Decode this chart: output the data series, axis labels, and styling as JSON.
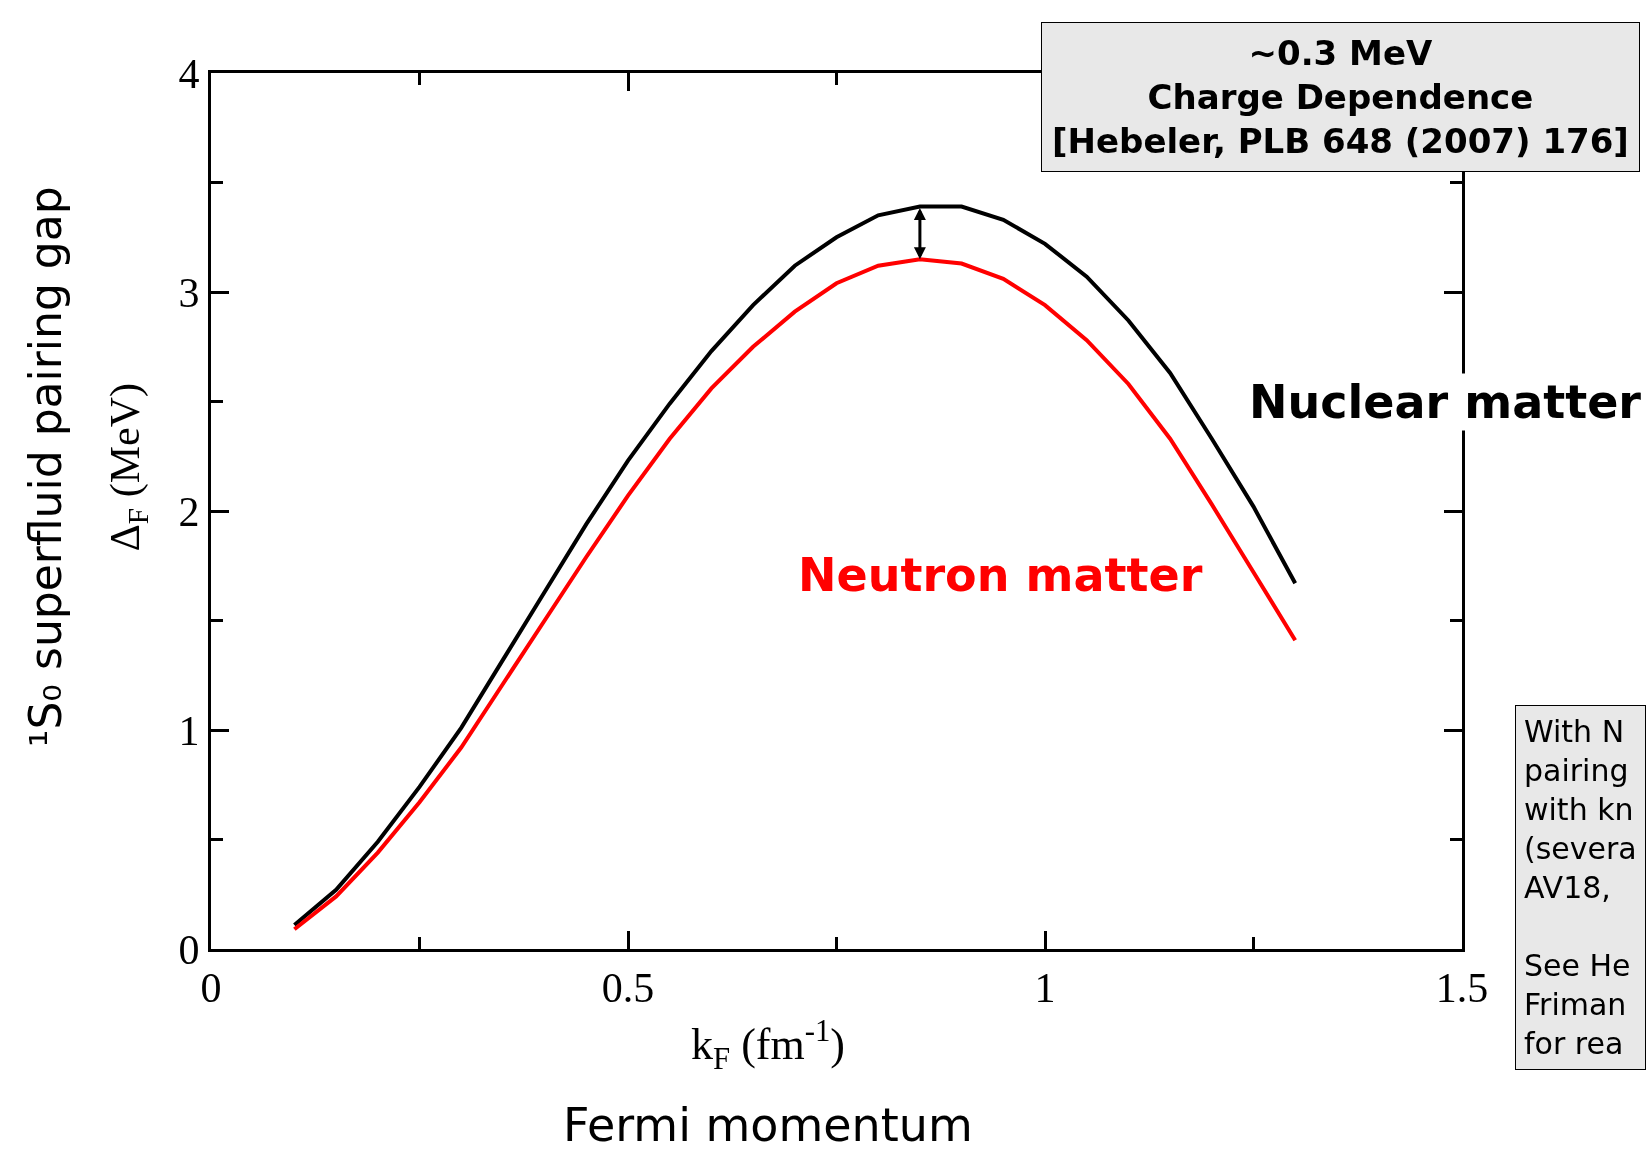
{
  "chart_data": {
    "type": "line",
    "xlabel": "k$_{F}$ (fm$^{-1}$)\nFermi momentum",
    "ylabel": "¹S₀ superfluid pairing gap\nΔ$_{F}$ (MeV)",
    "x": [
      0.1,
      0.15,
      0.2,
      0.25,
      0.3,
      0.35,
      0.4,
      0.45,
      0.5,
      0.55,
      0.6,
      0.65,
      0.7,
      0.75,
      0.8,
      0.85,
      0.9,
      0.95,
      1.0,
      1.05,
      1.1,
      1.15,
      1.2,
      1.25,
      1.3
    ],
    "series": [
      {
        "name": "Nuclear matter",
        "color": "#000000",
        "values": [
          0.11,
          0.27,
          0.49,
          0.74,
          1.01,
          1.32,
          1.63,
          1.94,
          2.23,
          2.49,
          2.73,
          2.94,
          3.12,
          3.25,
          3.35,
          3.39,
          3.39,
          3.33,
          3.22,
          3.07,
          2.87,
          2.63,
          2.33,
          2.02,
          1.67
        ]
      },
      {
        "name": "Neutron matter",
        "color": "#ff0000",
        "values": [
          0.09,
          0.24,
          0.44,
          0.67,
          0.92,
          1.21,
          1.5,
          1.79,
          2.07,
          2.33,
          2.56,
          2.75,
          2.91,
          3.04,
          3.12,
          3.15,
          3.13,
          3.06,
          2.94,
          2.78,
          2.58,
          2.33,
          2.03,
          1.72,
          1.41
        ]
      }
    ],
    "xlim": [
      0,
      1.5
    ],
    "xticks": [
      0,
      {
        "value": 0.25,
        "label": null
      },
      0.5,
      {
        "value": 0.75,
        "label": null
      },
      1,
      {
        "value": 1.25,
        "label": null
      },
      1.5
    ],
    "ylim": [
      0,
      4
    ],
    "yticks": [
      0,
      {
        "value": 0.5,
        "label": null
      },
      1,
      {
        "value": 1.5,
        "label": null
      },
      2,
      {
        "value": 2.5,
        "label": null
      },
      3,
      {
        "value": 3.5,
        "label": null
      },
      4
    ],
    "annotations": [
      "~0.3 MeV\nCharge Dependence\n[Hebeler, PLB 648 (2007) 176]",
      "With N\npairing\nwith kn\n(severa\nAV18,\n\nSee He\nFriman\nfor rea"
    ],
    "grid": false,
    "marker": "none",
    "line_style": "solid"
  }
}
